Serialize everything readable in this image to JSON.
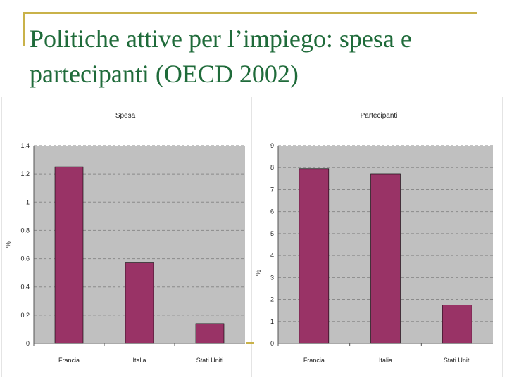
{
  "slide": {
    "title": "Politiche attive per l’impiego: spesa e partecipanti (OECD 2002)"
  },
  "colors": {
    "title": "#1f6b3a",
    "frame": "#c9b24a",
    "plot_bg": "#c0c0c0",
    "bar": "#993366"
  },
  "chart_data": [
    {
      "type": "bar",
      "title": "Spesa",
      "ylabel": "%",
      "categories": [
        "Francia",
        "Italia",
        "Stati Uniti"
      ],
      "values": [
        1.25,
        0.57,
        0.14
      ],
      "ylim": [
        0,
        1.4
      ],
      "yticks": [
        0,
        0.2,
        0.4,
        0.6,
        0.8,
        1,
        1.2,
        1.4
      ],
      "grid": true
    },
    {
      "type": "bar",
      "title": "Partecipanti",
      "ylabel": "%",
      "categories": [
        "Francia",
        "Italia",
        "Stati Uniti"
      ],
      "values": [
        7.95,
        7.72,
        1.75
      ],
      "ylim": [
        0,
        9
      ],
      "yticks": [
        0,
        1,
        2,
        3,
        4,
        5,
        6,
        7,
        8,
        9
      ],
      "grid": true
    }
  ]
}
